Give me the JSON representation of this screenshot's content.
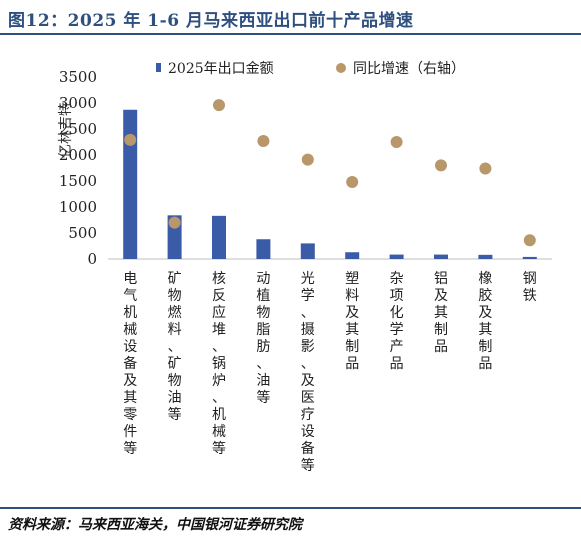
{
  "header": {
    "title": "图12：2025 年 1-6 月马来西亚出口前十产品增速"
  },
  "footer": {
    "source": "资料来源：马来西亚海关，中国银河证券研究院"
  },
  "colors": {
    "bar": "#3a5ca8",
    "dot": "#b8976a",
    "rule": "#2f4f7f"
  },
  "chart_data": {
    "type": "bar",
    "ylabel": "亿林吉特",
    "ylim": [
      0,
      3500
    ],
    "yticks": [
      0,
      500,
      1000,
      1500,
      2000,
      2500,
      3000,
      3500
    ],
    "legend": {
      "bar": "2025年出口金额",
      "dot": "同比增速（右轴）",
      "placement": "top"
    },
    "categories": [
      "电气机械设备及其零件等",
      "矿物燃料、矿物油等",
      "核反应堆、锅炉、机械等",
      "动植物脂肪、油等",
      "光学、摄影、及医疗设备等",
      "塑料及其制品",
      "杂项化学产品",
      "铝及其制品",
      "橡胶及其制品",
      "钢铁"
    ],
    "series": [
      {
        "name": "2025年出口金额",
        "type": "bar",
        "values": [
          2870,
          840,
          830,
          380,
          300,
          130,
          85,
          85,
          80,
          40
        ]
      },
      {
        "name": "同比增速（右轴）",
        "type": "scatter",
        "axis": "right",
        "values_on_left_scale": [
          2290,
          700,
          2960,
          2270,
          1910,
          1480,
          2250,
          1800,
          1740,
          360
        ]
      }
    ],
    "grid": false
  }
}
